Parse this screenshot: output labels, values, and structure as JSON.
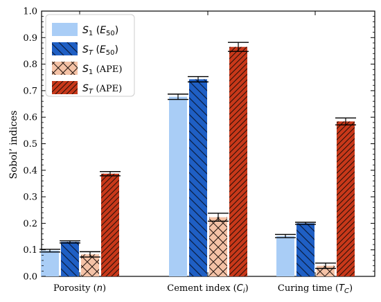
{
  "chart_data": {
    "type": "bar",
    "ylabel": "Sobol’ indices",
    "ylim": [
      0,
      1.0
    ],
    "yticks": [
      0.0,
      0.1,
      0.2,
      0.3,
      0.4,
      0.5,
      0.6,
      0.7,
      0.8,
      0.9,
      1.0
    ],
    "grid": false,
    "legend_position": "top-left",
    "categories": [
      {
        "pre": "Porosity (",
        "sym": "n",
        "sub": "",
        "post": ")"
      },
      {
        "pre": "Cement index (",
        "sym": "C",
        "sub": "i",
        "post": ")"
      },
      {
        "pre": "Curing time (",
        "sym": "T",
        "sub": "C",
        "post": ")"
      }
    ],
    "series": [
      {
        "name": {
          "sym": "S",
          "sub": "1",
          "arg_pre": " (",
          "arg_sym": "E",
          "arg_sub": "50",
          "arg_post": ")",
          "arg_italic": true
        },
        "color": "#a9cdf6",
        "hatch": "none",
        "values": [
          0.097,
          0.677,
          0.152
        ],
        "errors": [
          0.005,
          0.01,
          0.006
        ]
      },
      {
        "name": {
          "sym": "S",
          "sub": "T",
          "arg_pre": " (",
          "arg_sym": "E",
          "arg_sub": "50",
          "arg_post": ")",
          "arg_italic": true
        },
        "color": "#1f5fc4",
        "hatch": "backslash",
        "values": [
          0.13,
          0.743,
          0.2
        ],
        "errors": [
          0.004,
          0.01,
          0.004
        ]
      },
      {
        "name": {
          "sym": "S",
          "sub": "1",
          "arg_pre": " ",
          "arg_sym": "(APE)",
          "arg_sub": "",
          "arg_post": "",
          "arg_italic": false
        },
        "color": "#f4c2a6",
        "hatch": "cross",
        "values": [
          0.083,
          0.223,
          0.04
        ],
        "errors": [
          0.01,
          0.015,
          0.01
        ]
      },
      {
        "name": {
          "sym": "S",
          "sub": "T",
          "arg_pre": " ",
          "arg_sym": "(APE)",
          "arg_sub": "",
          "arg_post": "",
          "arg_italic": false
        },
        "color": "#c8381a",
        "hatch": "slash",
        "values": [
          0.387,
          0.865,
          0.584
        ],
        "errors": [
          0.008,
          0.017,
          0.013
        ]
      }
    ]
  }
}
